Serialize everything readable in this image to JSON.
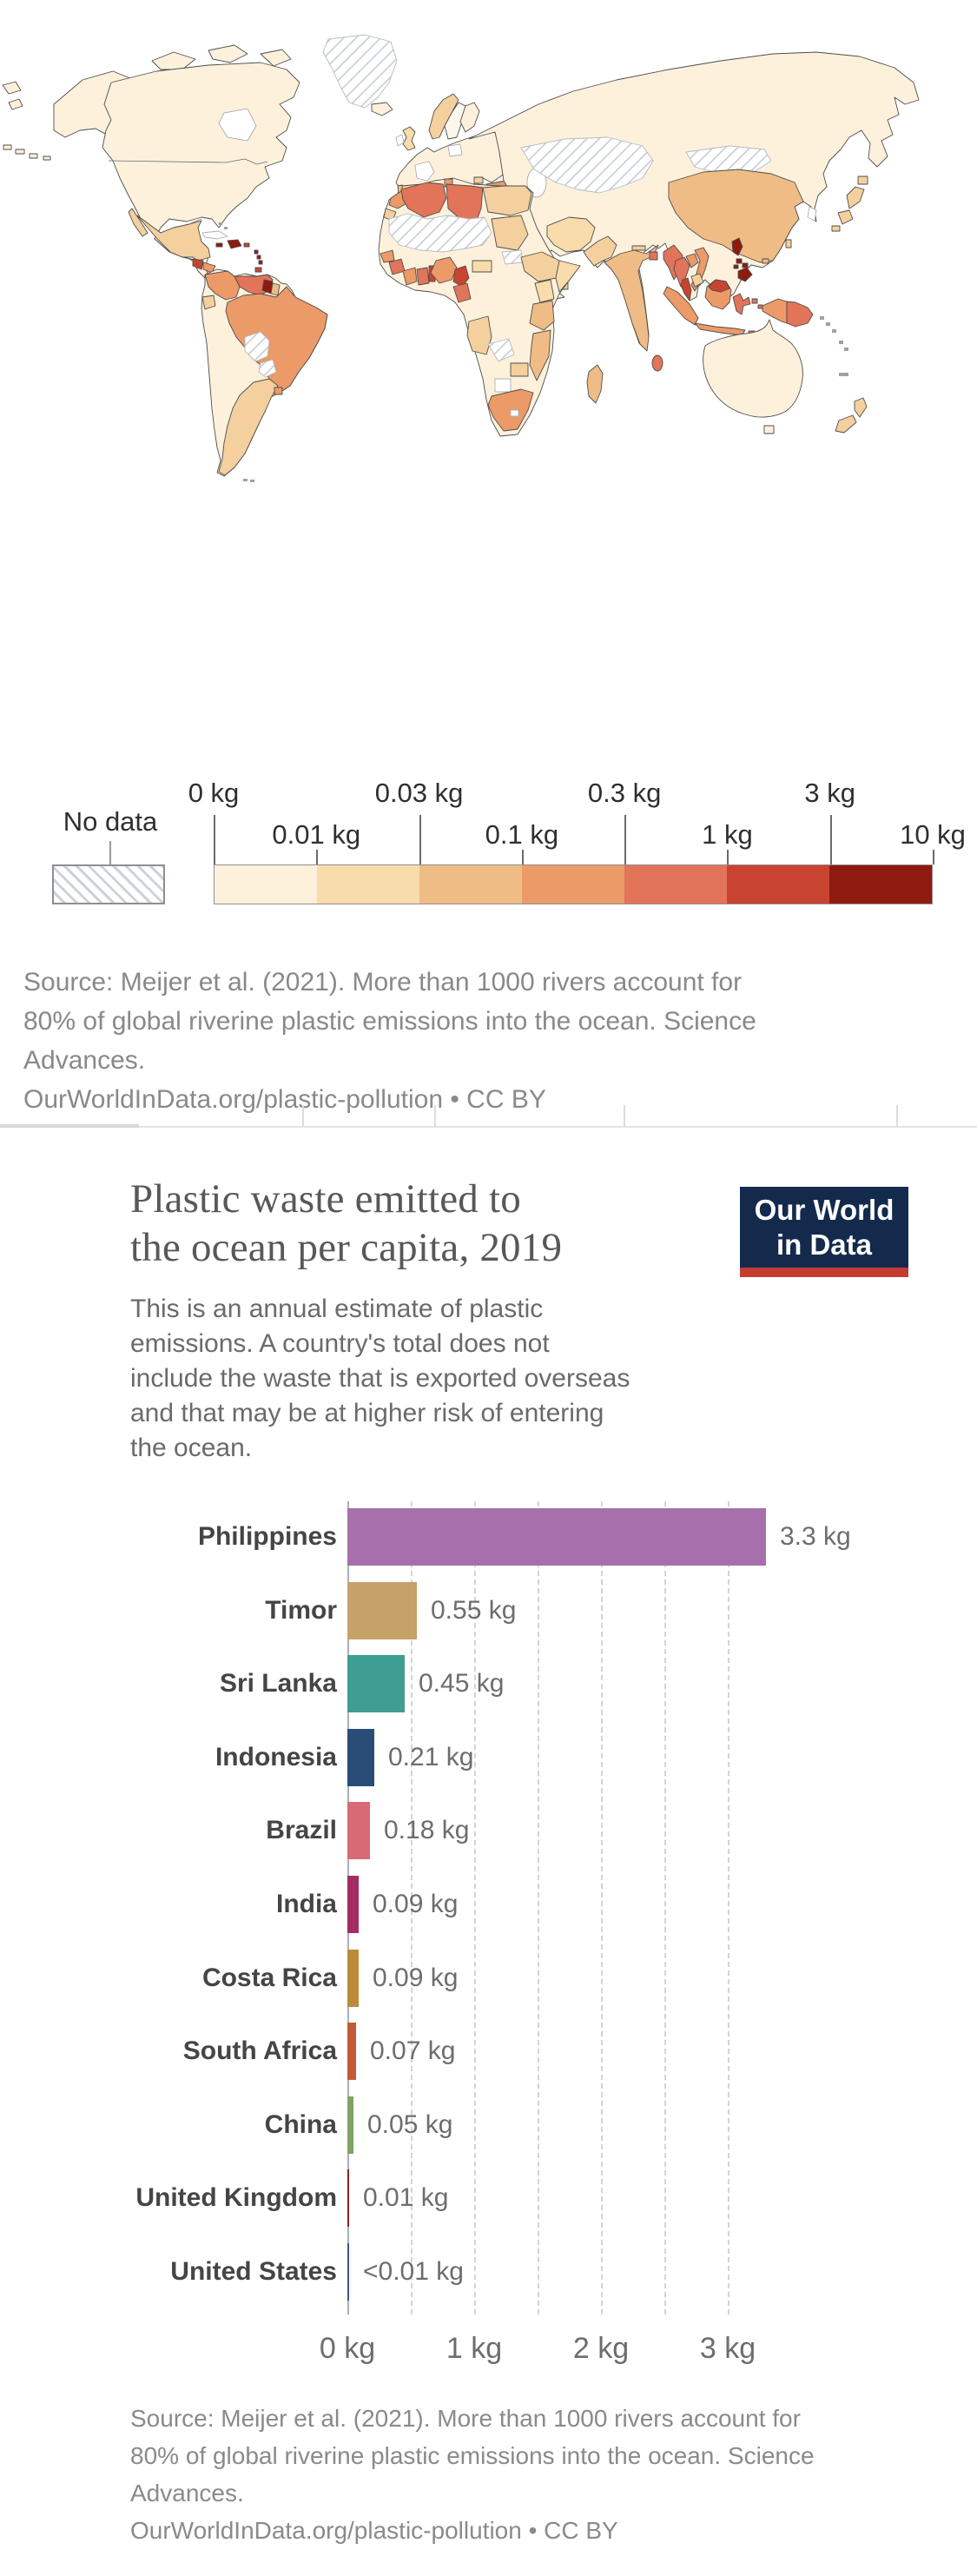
{
  "map_view": {
    "legend": {
      "no_data_label": "No data",
      "edge_labels": [
        "0 kg",
        "0.01 kg",
        "0.03 kg",
        "0.1 kg",
        "0.3 kg",
        "1 kg",
        "3 kg",
        "10 kg"
      ],
      "colors": [
        "#fdf1dc",
        "#f8dcab",
        "#f0bc85",
        "#ec9a67",
        "#e2745a",
        "#c94430",
        "#8e1a10"
      ]
    },
    "source_lines": [
      "Source: Meijer et al. (2021). More than 1000 rivers account for",
      "80% of global riverine plastic emissions into the ocean. Science",
      "Advances.",
      "OurWorldInData.org/plastic-pollution • CC BY"
    ]
  },
  "chart_view": {
    "title_lines": [
      "Plastic waste emitted to",
      "the ocean per capita, 2019"
    ],
    "subtitle_lines": [
      "This is an annual estimate of plastic",
      "emissions. A country's total does not",
      "include the waste that is exported overseas",
      "and that may be at higher risk of entering",
      "the ocean."
    ],
    "logo_lines": [
      "Our World",
      "in Data"
    ],
    "source_lines": [
      "Source: Meijer et al. (2021). More than 1000 rivers account for",
      "80% of global riverine plastic emissions into the ocean. Science",
      "Advances.",
      "OurWorldInData.org/plastic-pollution • CC BY"
    ]
  },
  "chart_data": {
    "type": "bar",
    "orientation": "horizontal",
    "title": "Plastic waste emitted to the ocean per capita, 2019",
    "unit": "kg per capita per year",
    "categories": [
      "Philippines",
      "Timor",
      "Sri Lanka",
      "Indonesia",
      "Brazil",
      "India",
      "Costa Rica",
      "South Africa",
      "China",
      "United Kingdom",
      "United States"
    ],
    "values": [
      3.3,
      0.55,
      0.45,
      0.21,
      0.18,
      0.09,
      0.09,
      0.07,
      0.05,
      0.01,
      0.005
    ],
    "value_labels": [
      "3.3 kg",
      "0.55 kg",
      "0.45 kg",
      "0.21 kg",
      "0.18 kg",
      "0.09 kg",
      "0.09 kg",
      "0.07 kg",
      "0.05 kg",
      "0.01 kg",
      "<0.01 kg"
    ],
    "bar_colors": [
      "#a76fab",
      "#c6a168",
      "#3e9e92",
      "#2a4d78",
      "#d86a76",
      "#a42c62",
      "#bd8a3b",
      "#c25a36",
      "#7da465",
      "#8b2022",
      "#3e5590"
    ],
    "x_ticks": [
      "0 kg",
      "1 kg",
      "2 kg",
      "3 kg"
    ],
    "x_tick_values": [
      0,
      1,
      2,
      3
    ],
    "xlim": [
      0,
      3.45
    ],
    "gridline_step": 0.5,
    "gridline_style": "dashed",
    "legend_position": "none"
  }
}
